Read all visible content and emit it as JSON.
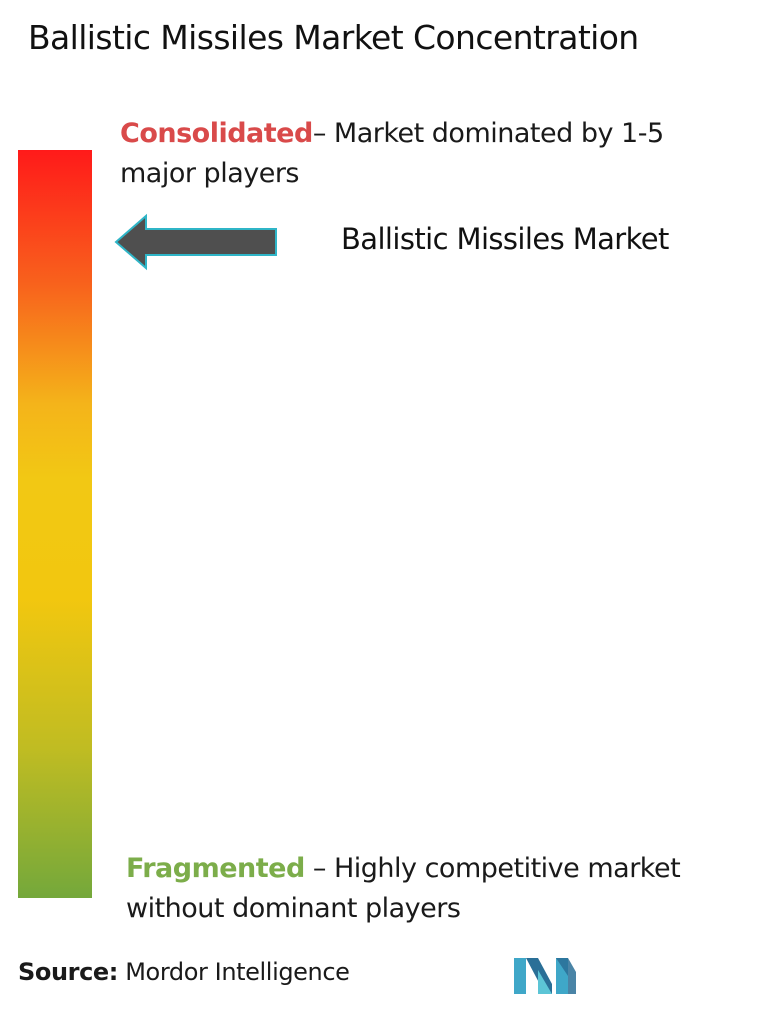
{
  "title": "Ballistic Missiles Market Concentration",
  "scale": {
    "top": {
      "key": "Consolidated",
      "description": "– Market dominated by 1-5 major players",
      "color": "#d94a4a"
    },
    "bottom": {
      "key": "Fragmented",
      "description": " – Highly competitive market without dominant players",
      "color": "#7cad4a"
    },
    "gradient_colors": [
      "#ff1a1a",
      "#f8621c",
      "#f2c814",
      "#74a83b"
    ]
  },
  "market": {
    "label": "Ballistic Missiles Market",
    "arrow_icon": "left-arrow-icon"
  },
  "footer": {
    "source_key": "Source:",
    "source_value": " Mordor Intelligence",
    "logo_icon": "mordor-intelligence-logo"
  }
}
